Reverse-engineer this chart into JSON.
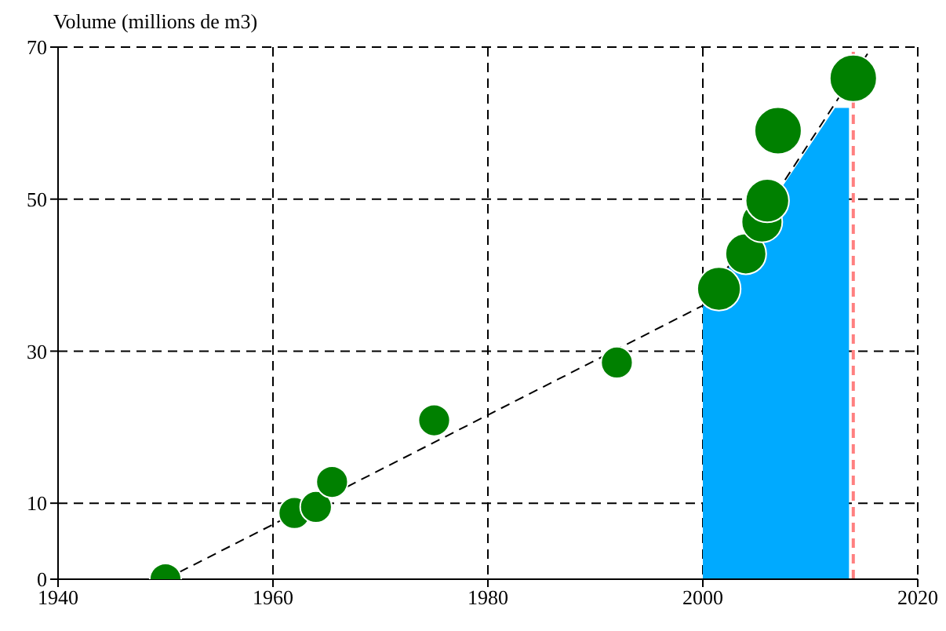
{
  "chart_data": {
    "type": "bubble",
    "ylabel": "Volume (millions de m3)",
    "xlim": [
      1940,
      2020
    ],
    "xticks": [
      1940,
      1960,
      1980,
      2000,
      2020
    ],
    "ylim": [
      0,
      70
    ],
    "yticks": [
      0,
      10,
      30,
      50,
      70
    ],
    "grid": true,
    "series": [
      {
        "type": "area",
        "color": "#00aaff",
        "x": [
          2000,
          2012.3,
          2013.6
        ],
        "values": [
          36,
          62,
          62
        ]
      },
      {
        "type": "line",
        "color": "#000000",
        "line_style": "dashed",
        "x": [
          1950,
          2000,
          2015.5
        ],
        "values": [
          0,
          36,
          69.5
        ]
      },
      {
        "color": "#008000",
        "x": [
          1950,
          1962,
          1964,
          1965.5,
          1975,
          1992,
          2001.5,
          2004,
          2005.5,
          2006,
          2007,
          2014
        ],
        "values": [
          0,
          8.7,
          9.5,
          12.8,
          20.9,
          28.5,
          38.2,
          42.8,
          47,
          49.8,
          59,
          65.9
        ],
        "sizes": [
          0.45,
          0.45,
          0.45,
          0.45,
          0.45,
          0.45,
          0.85,
          0.75,
          0.75,
          0.85,
          1,
          1
        ]
      }
    ],
    "ref_lines": [
      {
        "axis": "x",
        "value": 2014,
        "color": "#ff7f7f",
        "line_style": "dashed"
      }
    ]
  }
}
